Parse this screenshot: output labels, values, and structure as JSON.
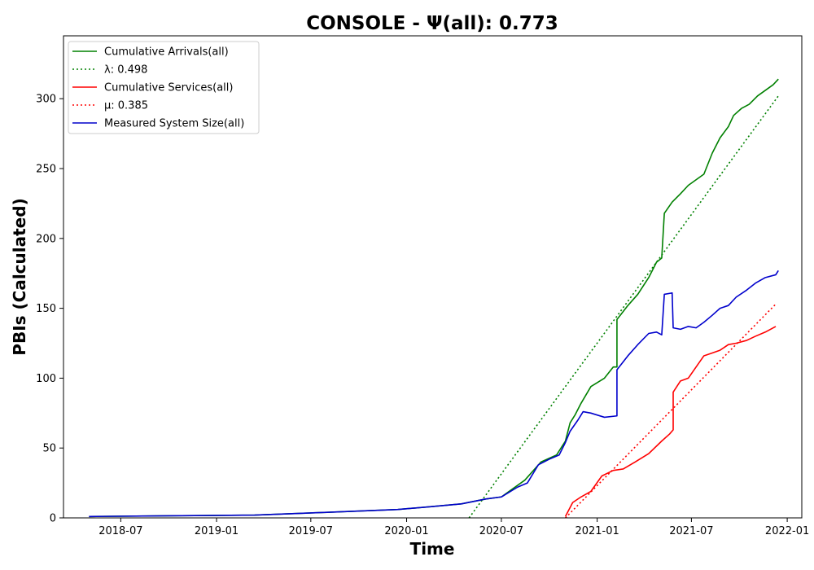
{
  "chart_data": {
    "type": "line",
    "title": "CONSOLE -  Ψ(all): 0.773",
    "xlabel": "Time",
    "ylabel": "PBIs (Calculated)",
    "xlim": [
      "2018-03-13",
      "2022-01-29"
    ],
    "ylim": [
      0,
      345
    ],
    "x_ticks": [
      "2018-07-01",
      "2019-01-01",
      "2019-07-01",
      "2020-01-01",
      "2020-07-01",
      "2021-01-01",
      "2021-07-01",
      "2022-01-01"
    ],
    "x_tick_labels": [
      "2018-07",
      "2019-01",
      "2019-07",
      "2020-01",
      "2020-07",
      "2021-01",
      "2021-07",
      "2022-01"
    ],
    "y_ticks": [
      0,
      50,
      100,
      150,
      200,
      250,
      300
    ],
    "grid": false,
    "legend_position": "upper-left",
    "series": [
      {
        "name": "Cumulative Arrivals(all)",
        "color": "#008000",
        "style": "solid",
        "x": [
          "2018-05-01",
          "2018-10-01",
          "2019-03-15",
          "2019-08-01",
          "2019-12-15",
          "2020-02-15",
          "2020-04-15",
          "2020-06-01",
          "2020-07-01",
          "2020-08-15",
          "2020-09-15",
          "2020-10-15",
          "2020-11-01",
          "2020-11-10",
          "2020-11-20",
          "2020-12-01",
          "2020-12-20",
          "2021-01-15",
          "2021-02-01",
          "2021-02-08",
          "2021-02-08",
          "2021-03-01",
          "2021-03-20",
          "2021-04-10",
          "2021-04-25",
          "2021-05-05",
          "2021-05-10",
          "2021-05-25",
          "2021-06-10",
          "2021-06-25",
          "2021-07-10",
          "2021-07-25",
          "2021-08-10",
          "2021-08-25",
          "2021-09-10",
          "2021-09-20",
          "2021-10-05",
          "2021-10-20",
          "2021-11-05",
          "2021-11-20",
          "2021-12-05",
          "2021-12-15"
        ],
        "y": [
          1,
          1.5,
          2,
          4,
          6,
          8,
          10,
          13.5,
          15,
          27,
          40,
          45,
          55,
          68,
          74,
          82,
          94,
          100,
          108,
          108,
          142,
          152,
          160,
          172,
          183,
          186,
          218,
          226,
          232,
          238,
          242,
          246,
          261,
          272,
          280,
          288,
          293,
          296,
          302,
          306,
          310,
          314
        ]
      },
      {
        "name": "λ: 0.498",
        "color": "#008000",
        "style": "dotted",
        "x": [
          "2020-04-30",
          "2021-12-15"
        ],
        "y": [
          0,
          302
        ]
      },
      {
        "name": "Cumulative Services(all)",
        "color": "#ff0000",
        "style": "solid",
        "x": [
          "2020-11-01",
          "2020-11-15",
          "2020-12-01",
          "2020-12-20",
          "2021-01-10",
          "2021-02-01",
          "2021-02-20",
          "2021-03-15",
          "2021-04-10",
          "2021-05-05",
          "2021-05-20",
          "2021-05-27",
          "2021-05-27",
          "2021-06-10",
          "2021-06-25",
          "2021-07-10",
          "2021-07-25",
          "2021-08-10",
          "2021-08-25",
          "2021-09-10",
          "2021-09-25",
          "2021-10-15",
          "2021-11-01",
          "2021-11-20",
          "2021-12-10"
        ],
        "y": [
          1,
          11,
          15,
          19,
          30,
          34,
          35,
          40,
          46,
          55,
          60,
          63,
          90,
          98,
          100,
          108,
          116,
          118,
          120,
          124,
          125,
          127,
          130,
          133,
          137
        ]
      },
      {
        "name": "μ: 0.385",
        "color": "#ff0000",
        "style": "dotted",
        "x": [
          "2020-11-01",
          "2021-12-10"
        ],
        "y": [
          0,
          153
        ]
      },
      {
        "name": "Measured System Size(all)",
        "color": "#0000cc",
        "style": "solid",
        "x": [
          "2018-05-01",
          "2018-10-01",
          "2019-03-15",
          "2019-08-01",
          "2019-12-15",
          "2020-02-15",
          "2020-04-15",
          "2020-06-01",
          "2020-07-01",
          "2020-08-01",
          "2020-08-20",
          "2020-09-10",
          "2020-10-01",
          "2020-10-20",
          "2020-11-01",
          "2020-11-10",
          "2020-11-25",
          "2020-12-05",
          "2020-12-20",
          "2021-01-15",
          "2021-02-08",
          "2021-02-08",
          "2021-03-01",
          "2021-03-20",
          "2021-04-10",
          "2021-04-25",
          "2021-05-05",
          "2021-05-10",
          "2021-05-25",
          "2021-05-27",
          "2021-06-10",
          "2021-06-25",
          "2021-07-10",
          "2021-07-25",
          "2021-08-10",
          "2021-08-25",
          "2021-09-10",
          "2021-09-25",
          "2021-10-15",
          "2021-11-01",
          "2021-11-20",
          "2021-12-10",
          "2021-12-15"
        ],
        "y": [
          1,
          1.5,
          2,
          4,
          6,
          8,
          10,
          13.5,
          15,
          22,
          25,
          38,
          42,
          45,
          54,
          62,
          70,
          76,
          75,
          72,
          73,
          106,
          116,
          124,
          132,
          133,
          131,
          160,
          161,
          136,
          135,
          137,
          136,
          140,
          145,
          150,
          152,
          158,
          163,
          168,
          172,
          174,
          177
        ]
      }
    ]
  }
}
